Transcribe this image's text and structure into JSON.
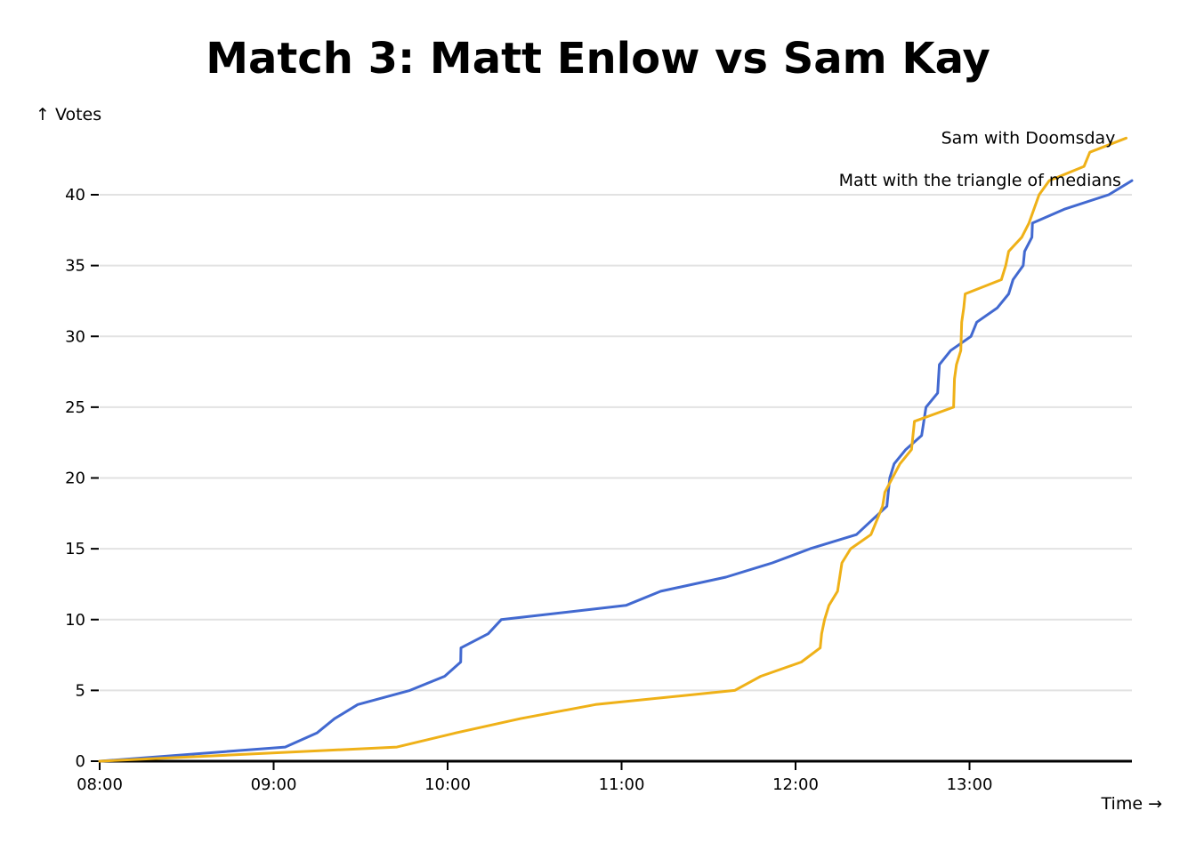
{
  "chart_data": {
    "type": "line",
    "title": "Match 3: Matt Enlow vs Sam Kay",
    "xlabel": "Time →",
    "ylabel": "↑ Votes",
    "x_unit": "minutes since 08:00",
    "xlim": [
      0,
      356
    ],
    "ylim": [
      0,
      44
    ],
    "x_ticks": [
      {
        "value": 0,
        "label": "08:00"
      },
      {
        "value": 60,
        "label": "09:00"
      },
      {
        "value": 120,
        "label": "10:00"
      },
      {
        "value": 180,
        "label": "11:00"
      },
      {
        "value": 240,
        "label": "12:00"
      },
      {
        "value": 300,
        "label": "13:00"
      }
    ],
    "y_ticks": [
      0,
      5,
      10,
      15,
      20,
      25,
      30,
      35,
      40
    ],
    "grid": true,
    "series": [
      {
        "name": "Matt with the triangle of medians",
        "color": "#4269d0",
        "points": [
          [
            0,
            0
          ],
          [
            64,
            1
          ],
          [
            75,
            2
          ],
          [
            81,
            3
          ],
          [
            89,
            4
          ],
          [
            107,
            5
          ],
          [
            119,
            6
          ],
          [
            124.5,
            7
          ],
          [
            124.6,
            8
          ],
          [
            134,
            9
          ],
          [
            138.5,
            10
          ],
          [
            181.5,
            11
          ],
          [
            193.5,
            12
          ],
          [
            216,
            13
          ],
          [
            232,
            14
          ],
          [
            245,
            15
          ],
          [
            261,
            16
          ],
          [
            271.5,
            18
          ],
          [
            272.5,
            20
          ],
          [
            274,
            21
          ],
          [
            278,
            22
          ],
          [
            283.5,
            23
          ],
          [
            285,
            25
          ],
          [
            289,
            26
          ],
          [
            289.6,
            28
          ],
          [
            293.5,
            29
          ],
          [
            300.5,
            30
          ],
          [
            302.5,
            31
          ],
          [
            309.5,
            32
          ],
          [
            313.5,
            33
          ],
          [
            315,
            34
          ],
          [
            318.5,
            35
          ],
          [
            319,
            36
          ],
          [
            321.5,
            37
          ],
          [
            321.7,
            38
          ],
          [
            333,
            39
          ],
          [
            348,
            40
          ],
          [
            356,
            41
          ]
        ]
      },
      {
        "name": "Sam with Doomsday",
        "color": "#efb118",
        "points": [
          [
            0,
            0
          ],
          [
            102.5,
            1
          ],
          [
            123,
            2
          ],
          [
            145,
            3
          ],
          [
            171,
            4
          ],
          [
            219,
            5
          ],
          [
            228,
            6
          ],
          [
            242,
            7
          ],
          [
            248.5,
            8
          ],
          [
            249,
            9
          ],
          [
            250,
            10
          ],
          [
            251.5,
            11
          ],
          [
            254.5,
            12
          ],
          [
            256,
            14
          ],
          [
            259,
            15
          ],
          [
            266,
            16
          ],
          [
            270,
            18
          ],
          [
            270.8,
            19
          ],
          [
            276,
            21
          ],
          [
            280,
            22
          ],
          [
            281,
            24
          ],
          [
            294.5,
            25
          ],
          [
            294.8,
            27
          ],
          [
            295.5,
            28
          ],
          [
            297,
            29
          ],
          [
            297.3,
            31
          ],
          [
            298,
            32
          ],
          [
            298.5,
            33
          ],
          [
            311,
            34
          ],
          [
            312.5,
            35
          ],
          [
            313.5,
            36
          ],
          [
            318,
            37
          ],
          [
            320.5,
            38
          ],
          [
            324,
            40
          ],
          [
            327.5,
            41
          ],
          [
            339.5,
            42
          ],
          [
            341.5,
            43
          ],
          [
            354,
            44
          ]
        ]
      }
    ]
  }
}
